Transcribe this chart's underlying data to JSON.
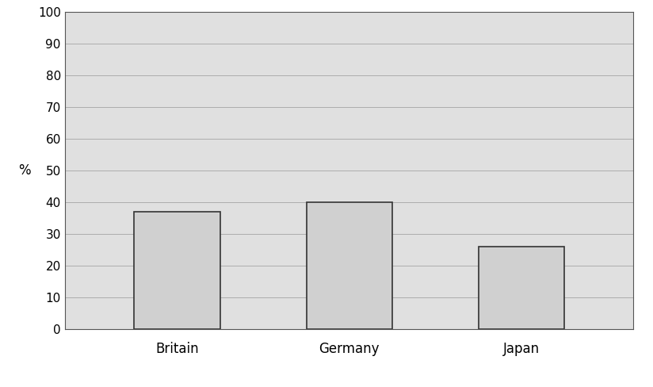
{
  "categories": [
    "Britain",
    "Germany",
    "Japan"
  ],
  "values": [
    37,
    40,
    26
  ],
  "bar_color": "#d0d0d0",
  "bar_edge_color": "#333333",
  "bar_edge_width": 1.2,
  "ylabel": "%",
  "ylim": [
    0,
    100
  ],
  "yticks": [
    0,
    10,
    20,
    30,
    40,
    50,
    60,
    70,
    80,
    90,
    100
  ],
  "grid_color": "#999999",
  "grid_linewidth": 0.5,
  "grid_linestyle": "-",
  "plot_bg_color": "#e0e0e0",
  "fig_bg_color": "#ffffff",
  "bar_width": 0.5,
  "axis_fontsize": 12,
  "tick_fontsize": 11,
  "ylabel_fontsize": 12,
  "spine_color": "#555555",
  "spine_linewidth": 0.8
}
